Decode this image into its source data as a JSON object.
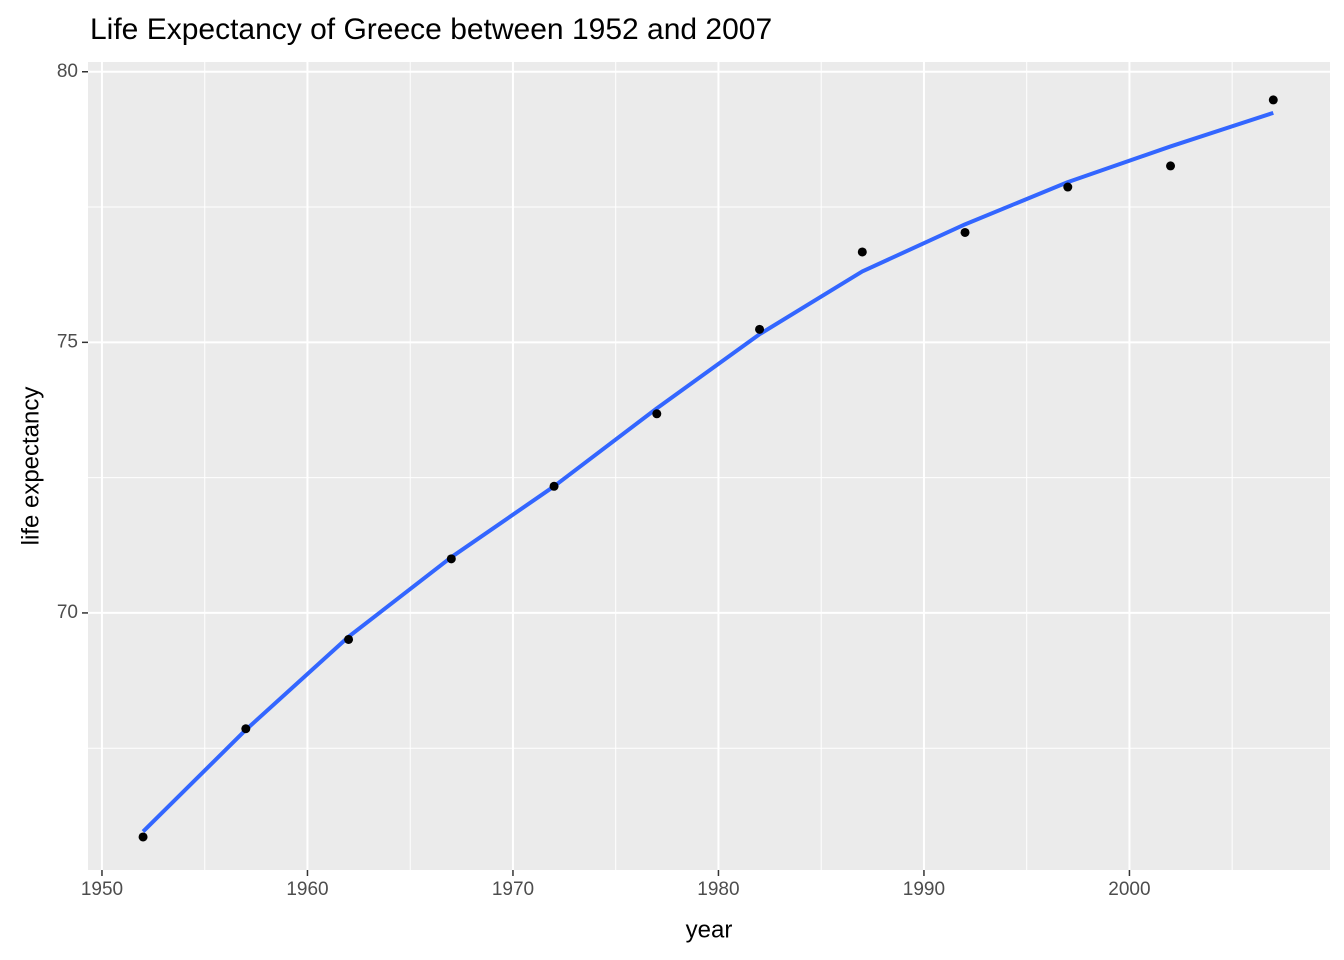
{
  "chart_data": {
    "type": "scatter",
    "title": "Life Expectancy of Greece between 1952 and 2007",
    "x_label": "year",
    "y_label": "life expectancy",
    "x": [
      1952,
      1957,
      1962,
      1967,
      1972,
      1977,
      1982,
      1987,
      1992,
      1997,
      2002,
      2007
    ],
    "series": [
      {
        "name": "life expectancy",
        "kind": "points",
        "color": "#000000",
        "values": [
          65.86,
          67.86,
          69.51,
          71.0,
          72.34,
          73.68,
          75.24,
          76.67,
          77.03,
          77.87,
          78.26,
          79.48
        ]
      },
      {
        "name": "smooth",
        "kind": "line",
        "color": "#3366ff",
        "values": [
          65.96,
          67.84,
          69.56,
          71.03,
          72.34,
          73.78,
          75.15,
          76.31,
          77.18,
          77.96,
          78.62,
          79.24
        ]
      }
    ],
    "xlim": [
      1949.32,
      2009.76
    ],
    "ylim": [
      65.25,
      80.18
    ],
    "xticks": [
      1950,
      1960,
      1970,
      1980,
      1990,
      2000
    ],
    "yticks": [
      70,
      75,
      80
    ],
    "xminorticks": [
      1955,
      1965,
      1975,
      1985,
      1995,
      2005
    ],
    "yminorticks": [
      67.5,
      72.5,
      77.5
    ],
    "grid": true,
    "legend": false
  }
}
